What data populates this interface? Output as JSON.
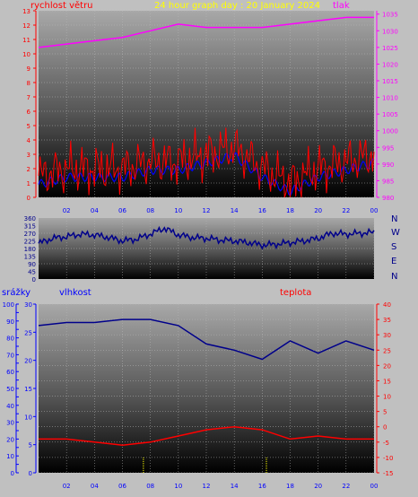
{
  "header": {
    "title": "24 hour graph day : 20 January 2024",
    "wind_label": "rychlost větru",
    "pressure_label": "tlak"
  },
  "middle": {
    "compass": [
      "N",
      "W",
      "S",
      "E",
      "N"
    ]
  },
  "bottom_header": {
    "rain_label": "srážky",
    "humidity_label": "vlhkost",
    "temp_label": "teplota"
  },
  "x_ticks": [
    "02",
    "04",
    "06",
    "08",
    "10",
    "12",
    "14",
    "16",
    "18",
    "20",
    "22",
    "00"
  ],
  "colors": {
    "wind": "#ff0000",
    "wind_avg": "#0000ff",
    "pressure": "#ff00ff",
    "direction": "#00008b",
    "humidity": "#00008b",
    "temperature": "#ff0000",
    "rain_axis": "#0000ff",
    "temp_axis": "#ff0000",
    "title": "#ffff00"
  },
  "chart_data": [
    {
      "type": "line",
      "name": "wind_pressure",
      "x_hours": [
        0,
        2,
        4,
        6,
        8,
        10,
        12,
        14,
        16,
        18,
        20,
        22,
        24
      ],
      "wind_axis": {
        "label": "rychlost větru",
        "ylim": [
          0,
          13
        ],
        "ticks": [
          0,
          1,
          2,
          3,
          4,
          5,
          6,
          7,
          8,
          9,
          10,
          11,
          12,
          13
        ]
      },
      "pressure_axis": {
        "label": "tlak",
        "ylim": [
          980,
          1036
        ],
        "ticks": [
          980,
          985,
          990,
          995,
          1000,
          1005,
          1010,
          1015,
          1020,
          1025,
          1030,
          1035
        ]
      },
      "series": [
        {
          "name": "rychlost větru",
          "axis": "wind",
          "values": [
            1.5,
            2,
            2,
            2,
            2.5,
            2.5,
            3,
            3.5,
            2,
            1,
            2,
            2.5,
            3
          ]
        },
        {
          "name": "tlak",
          "axis": "pressure",
          "values": [
            1025,
            1026,
            1027,
            1028,
            1030,
            1032,
            1031,
            1031,
            1031,
            1032,
            1033,
            1034,
            1034
          ]
        }
      ]
    },
    {
      "type": "line",
      "name": "wind_direction",
      "x_hours": [
        0,
        1,
        2,
        3,
        4,
        5,
        6,
        7,
        8,
        9,
        10,
        11,
        12,
        13,
        14,
        15,
        16,
        17,
        18,
        19,
        20,
        21,
        22,
        23,
        24
      ],
      "ylim": [
        0,
        360
      ],
      "ticks": [
        0,
        45,
        90,
        135,
        180,
        225,
        270,
        315,
        360
      ],
      "values": [
        210,
        240,
        250,
        265,
        260,
        245,
        225,
        235,
        265,
        300,
        260,
        245,
        240,
        230,
        225,
        215,
        200,
        205,
        215,
        225,
        240,
        270,
        265,
        270,
        275
      ]
    },
    {
      "type": "line",
      "name": "humidity_temperature",
      "x_hours": [
        0,
        2,
        4,
        6,
        8,
        10,
        12,
        14,
        16,
        18,
        20,
        22,
        24
      ],
      "rain_axis": {
        "label": "srážky",
        "ylim": [
          0,
          100
        ],
        "ticks": [
          0,
          5,
          10,
          15,
          20,
          25,
          30,
          35,
          40,
          45,
          50,
          55,
          60,
          65,
          70,
          75,
          80,
          85,
          90,
          95,
          100
        ]
      },
      "humidity_axis": {
        "label": "vlhkost",
        "ylim": [
          0,
          30
        ],
        "ticks": [
          0,
          5,
          10,
          15,
          20,
          25,
          30
        ]
      },
      "temp_axis": {
        "label": "teplota",
        "ylim": [
          -15,
          40
        ],
        "ticks": [
          -15,
          -10,
          -5,
          0,
          5,
          10,
          15,
          20,
          25,
          30,
          35,
          40
        ]
      },
      "series": [
        {
          "name": "vlhkost",
          "axis": "temperature",
          "values": [
            33,
            34,
            34,
            35,
            35,
            33,
            27,
            25,
            22,
            28,
            24,
            28,
            25
          ]
        },
        {
          "name": "teplota",
          "axis": "temperature",
          "values": [
            -4,
            -4,
            -5,
            -6,
            -5,
            -3,
            -1,
            0,
            -1,
            -4,
            -3,
            -4,
            -4
          ]
        }
      ]
    }
  ]
}
